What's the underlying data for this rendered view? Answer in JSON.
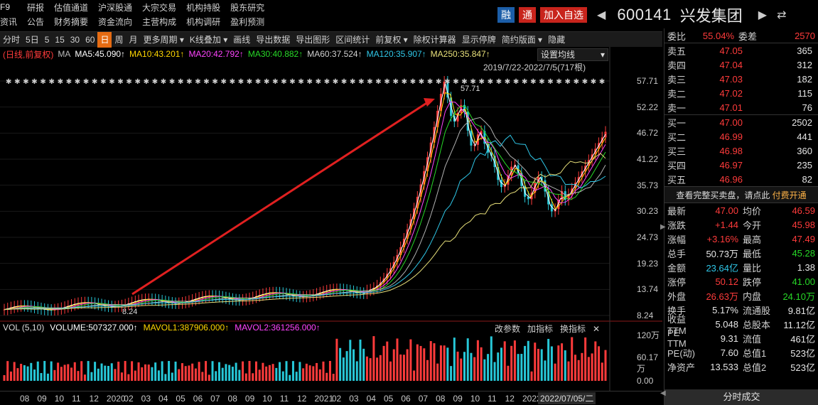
{
  "menu": {
    "row1": [
      "F9",
      "研报",
      "估值通道",
      "沪深股通",
      "大宗交易",
      "机构持股",
      "股东研究"
    ],
    "row2": [
      "资讯",
      "公告",
      "财务摘要",
      "资金流向",
      "主营构成",
      "机构调研",
      "盈利预测"
    ]
  },
  "stock": {
    "badge_margin": "融",
    "badge_tong": "通",
    "add_watch": "加入自选",
    "code": "600141",
    "name": "兴发集团"
  },
  "toolbar": {
    "items": [
      "分时",
      "5日",
      "5",
      "15",
      "30",
      "60",
      "日",
      "周",
      "月",
      "更多周期 ▾",
      "K线叠加 ▾",
      "画线",
      "导出数据",
      "导出图形",
      "区间统计",
      "前复权 ▾",
      "除权计算器",
      "显示停牌",
      "简约版面 ▾",
      "隐藏"
    ],
    "active_index": 6
  },
  "chart": {
    "mode_label": "(日线,前复权)",
    "ma_label": "MA",
    "ma5": "MA5:45.090↑",
    "ma10": "MA10:43.201↑",
    "ma20": "MA20:42.792↑",
    "ma30": "MA30:40.882↑",
    "ma60": "MA60:37.524↑",
    "ma120": "MA120:35.907↑",
    "ma250": "MA250:35.847↑",
    "set_ma": "设置均线",
    "range": "2019/7/22-2022/7/5(717根)",
    "high_label": "57.71",
    "low_label": "8.24",
    "y_ticks": [
      "57.71",
      "52.22",
      "46.72",
      "41.22",
      "35.73",
      "30.23",
      "24.73",
      "19.23",
      "13.74",
      "8.24"
    ],
    "colors": {
      "ma5": "#ffffff",
      "ma10": "#ffd700",
      "ma20": "#ff44ff",
      "ma30": "#27d827",
      "ma60": "#b0b0b0",
      "ma120": "#2fc7e8",
      "ma250": "#e8e07a",
      "up": "#ff3b3b",
      "down": "#27c8d8",
      "arrow": "#e02020"
    }
  },
  "volume": {
    "title": "VOL (5,10)",
    "volume": "VOLUME:507327.000↑",
    "mavol1": "MAVOL1:387906.000↑",
    "mavol2": "MAVOL2:361256.000↑",
    "tools": [
      "改参数",
      "加指标",
      "换指标",
      "✕"
    ],
    "y_ticks": [
      "120万",
      "60.17万",
      "0.00"
    ]
  },
  "xaxis": {
    "labels": [
      "08",
      "09",
      "10",
      "11",
      "12",
      "2020",
      "02",
      "03",
      "04",
      "05",
      "06",
      "07",
      "08",
      "09",
      "10",
      "11",
      "12",
      "2021",
      "02",
      "03",
      "04",
      "05",
      "06",
      "07",
      "08",
      "09",
      "10",
      "11",
      "12",
      "2022"
    ],
    "cursor_date": "2022/07/05/二"
  },
  "panel": {
    "weibi_label": "委比",
    "weibi": "55.04%",
    "weicha_label": "委差",
    "weicha": "2570",
    "asks": [
      {
        "name": "卖五",
        "price": "47.05",
        "vol": "365"
      },
      {
        "name": "卖四",
        "price": "47.04",
        "vol": "312"
      },
      {
        "name": "卖三",
        "price": "47.03",
        "vol": "182"
      },
      {
        "name": "卖二",
        "price": "47.02",
        "vol": "115"
      },
      {
        "name": "卖一",
        "price": "47.01",
        "vol": "76"
      }
    ],
    "bids": [
      {
        "name": "买一",
        "price": "47.00",
        "vol": "2502"
      },
      {
        "name": "买二",
        "price": "46.99",
        "vol": "441"
      },
      {
        "name": "买三",
        "price": "46.98",
        "vol": "360"
      },
      {
        "name": "买四",
        "price": "46.97",
        "vol": "235"
      },
      {
        "name": "买五",
        "price": "46.96",
        "vol": "82"
      }
    ],
    "notice": "查看完整买卖盘，请点此",
    "notice_pay": "付费开通",
    "stats": [
      {
        "l1": "最新",
        "v1": "47.00",
        "c1": "red",
        "l2": "均价",
        "v2": "46.59",
        "c2": "red"
      },
      {
        "l1": "涨跌",
        "v1": "+1.44",
        "c1": "red",
        "l2": "今开",
        "v2": "45.98",
        "c2": "red"
      },
      {
        "l1": "涨幅",
        "v1": "+3.16%",
        "c1": "red",
        "l2": "最高",
        "v2": "47.49",
        "c2": "red"
      },
      {
        "l1": "总手",
        "v1": "50.73万",
        "c1": "white",
        "l2": "最低",
        "v2": "45.28",
        "c2": "green"
      },
      {
        "l1": "金额",
        "v1": "23.64亿",
        "c1": "cyan",
        "l2": "量比",
        "v2": "1.38",
        "c2": "white"
      },
      {
        "l1": "涨停",
        "v1": "50.12",
        "c1": "red",
        "l2": "跌停",
        "v2": "41.00",
        "c2": "green"
      },
      {
        "l1": "外盘",
        "v1": "26.63万",
        "c1": "red",
        "l2": "内盘",
        "v2": "24.10万",
        "c2": "green"
      },
      {
        "l1": "换手",
        "v1": "5.17%",
        "c1": "white",
        "l2": "流通股",
        "v2": "9.81亿",
        "c2": "white"
      },
      {
        "l1": "收益TTM",
        "v1": "5.048",
        "c1": "white",
        "l2": "总股本",
        "v2": "11.12亿",
        "c2": "white"
      },
      {
        "l1": "PE TTM",
        "v1": "9.31",
        "c1": "white",
        "l2": "流值",
        "v2": "461亿",
        "c2": "white"
      },
      {
        "l1": "PE(动)",
        "v1": "7.60",
        "c1": "white",
        "l2": "总值1",
        "v2": "523亿",
        "c2": "white"
      },
      {
        "l1": "净资产",
        "v1": "13.533",
        "c1": "white",
        "l2": "总值2",
        "v2": "523亿",
        "c2": "white"
      }
    ],
    "footer_btn": "分时成交"
  }
}
